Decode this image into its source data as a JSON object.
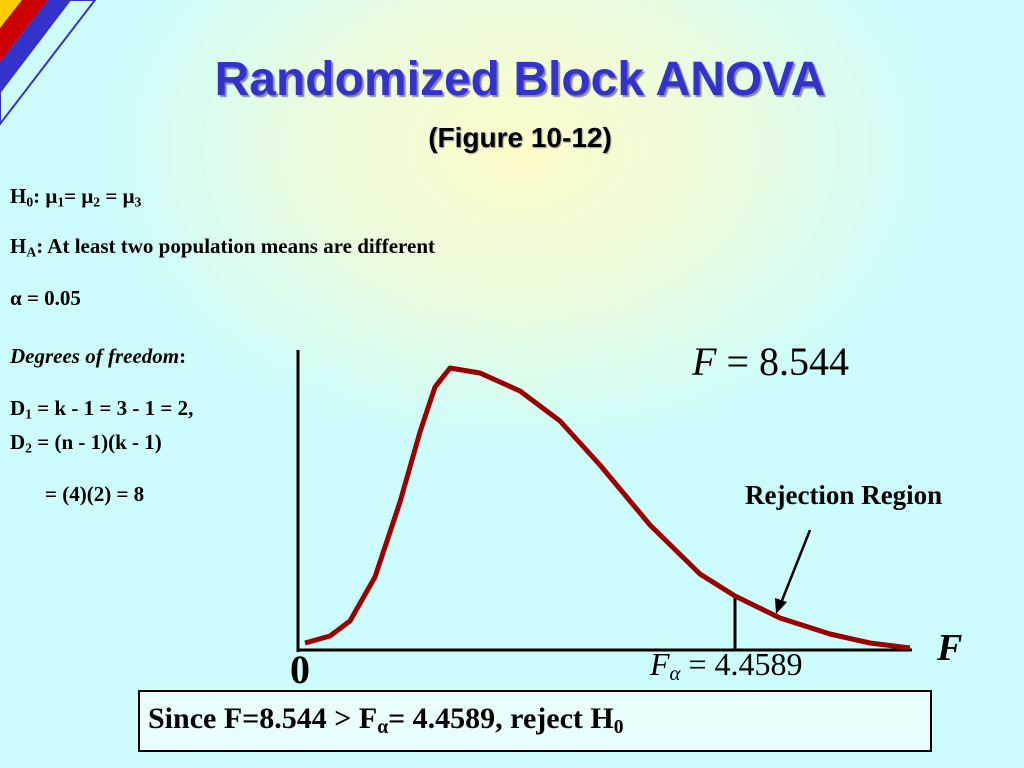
{
  "header": {
    "title": "Randomized Block ANOVA",
    "subtitle": "(Figure 10-12)"
  },
  "hypotheses": {
    "h0": [
      {
        "text": "H",
        "sub": "0"
      },
      {
        "text": ": μ",
        "sub": "1"
      },
      {
        "text": "= μ",
        "sub": "2"
      },
      {
        "text": " = μ",
        "sub": "3"
      }
    ],
    "ha": [
      {
        "text": "H",
        "sub": "A"
      },
      {
        "text": ": At least two population means are different"
      }
    ],
    "alpha": [
      {
        "text": "α = 0.05"
      }
    ]
  },
  "degrees": {
    "label": [
      {
        "text": "Degrees of freedom",
        "italic": true
      },
      {
        "text": ":"
      }
    ],
    "d1": [
      {
        "text": "D",
        "sub": "1"
      },
      {
        "text": " = k - 1 = 3 - 1 = 2,"
      }
    ],
    "d2": [
      {
        "text": "D",
        "sub": "2"
      },
      {
        "text": " = (n - 1)(k - 1)"
      }
    ],
    "d2b": [
      {
        "text": "= (4)(2) = 8"
      }
    ]
  },
  "figure": {
    "f_stat": [
      {
        "text": "F",
        "italic": true
      },
      {
        "text": " = 8.544"
      }
    ],
    "f_crit": [
      {
        "text": "F",
        "italic": true,
        "sub": "α"
      },
      {
        "text": " = 4.4589"
      }
    ],
    "rejection": [
      {
        "text": "Rejection Region"
      }
    ],
    "origin": [
      {
        "text": "0"
      }
    ],
    "axis": [
      {
        "text": "F",
        "italic": true
      }
    ]
  },
  "conclusion": [
    {
      "text": "Since F=8.544 > F",
      "sub": "α"
    },
    {
      "text": "= 4.4589, reject H",
      "sub": "0"
    }
  ]
}
